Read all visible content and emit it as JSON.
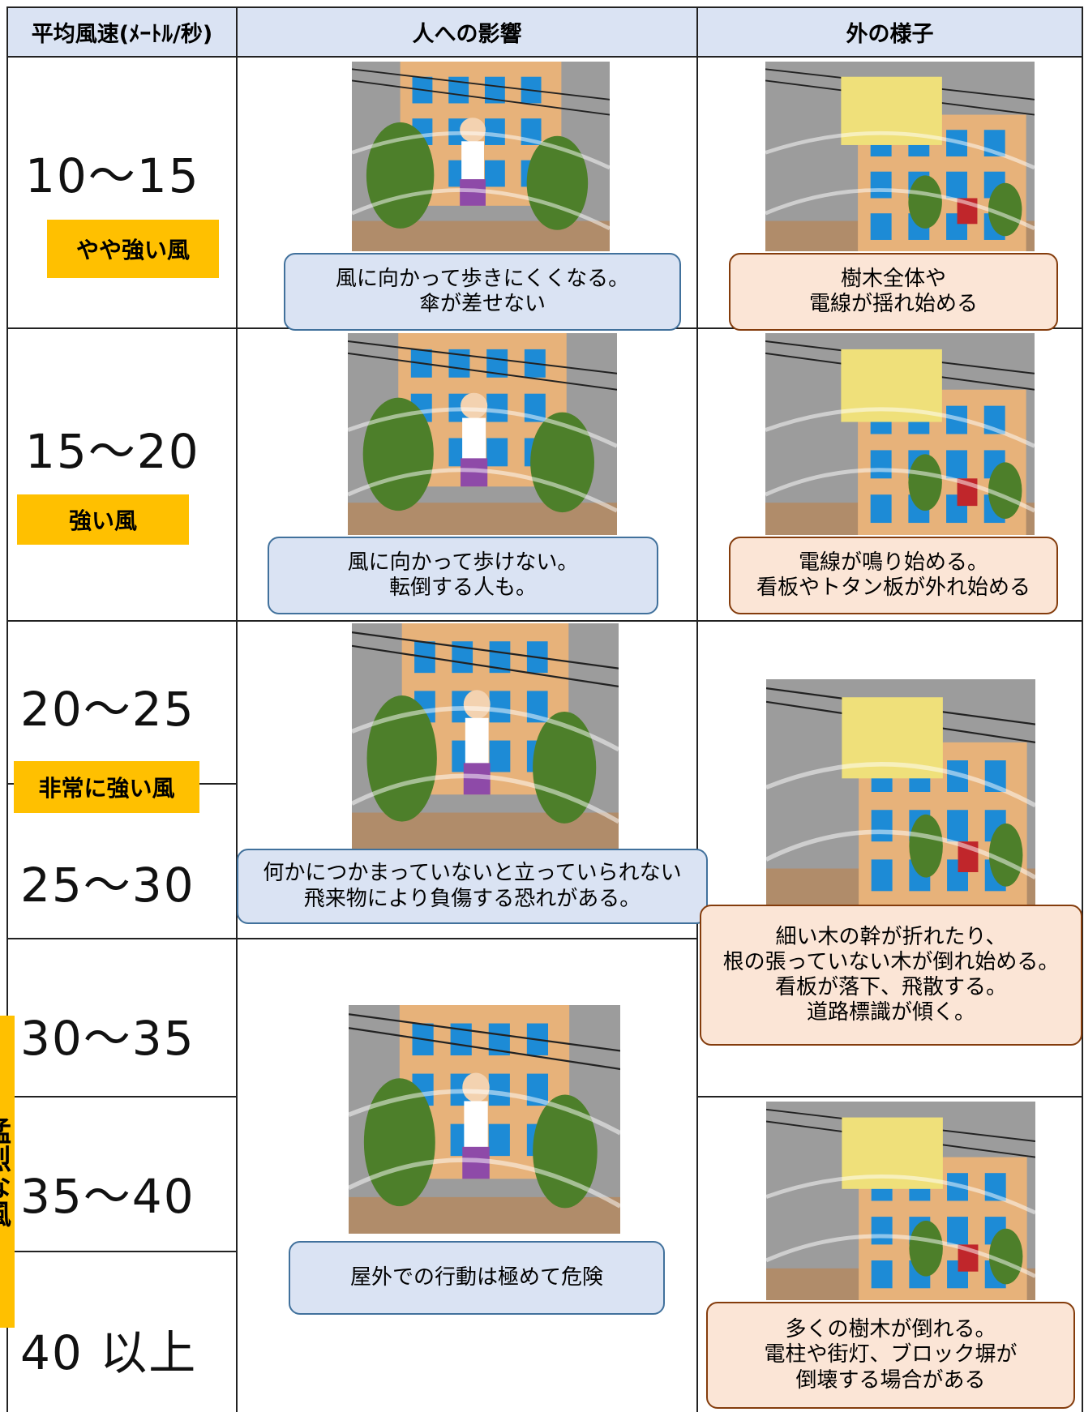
{
  "header": {
    "columns": [
      "平均風速(ﾒｰﾄﾙ/秒)",
      "人への影響",
      "外の様子"
    ]
  },
  "speeds": [
    "10～15",
    "15～20",
    "20～25",
    "25～30",
    "30～35",
    "35～40",
    "40 以上"
  ],
  "categories": [
    "やや強い風",
    "強い風",
    "非常に強い風",
    "猛烈な風"
  ],
  "people": [
    {
      "lines": [
        "風に向かって歩きにくくなる。",
        "傘が差せない"
      ]
    },
    {
      "lines": [
        "風に向かって歩けない。",
        "転倒する人も。"
      ]
    },
    {
      "lines": [
        "何かにつかまっていないと立っていられない",
        "飛来物により負傷する恐れがある。"
      ]
    },
    {
      "lines": [
        "屋外での行動は極めて危険"
      ]
    }
  ],
  "outside": [
    {
      "lines": [
        "樹木全体や",
        "電線が揺れ始める"
      ]
    },
    {
      "lines": [
        "電線が鳴り始める。",
        "看板やトタン板が外れ始める"
      ]
    },
    {
      "lines": [
        "細い木の幹が折れたり、",
        "根の張っていない木が倒れ始める。",
        "看板が落下、飛散する。",
        "道路標識が傾く。"
      ]
    },
    {
      "lines": [
        "多くの樹木が倒れる。",
        "電柱や街灯、ブロック塀が",
        "倒壊する場合がある"
      ]
    }
  ]
}
